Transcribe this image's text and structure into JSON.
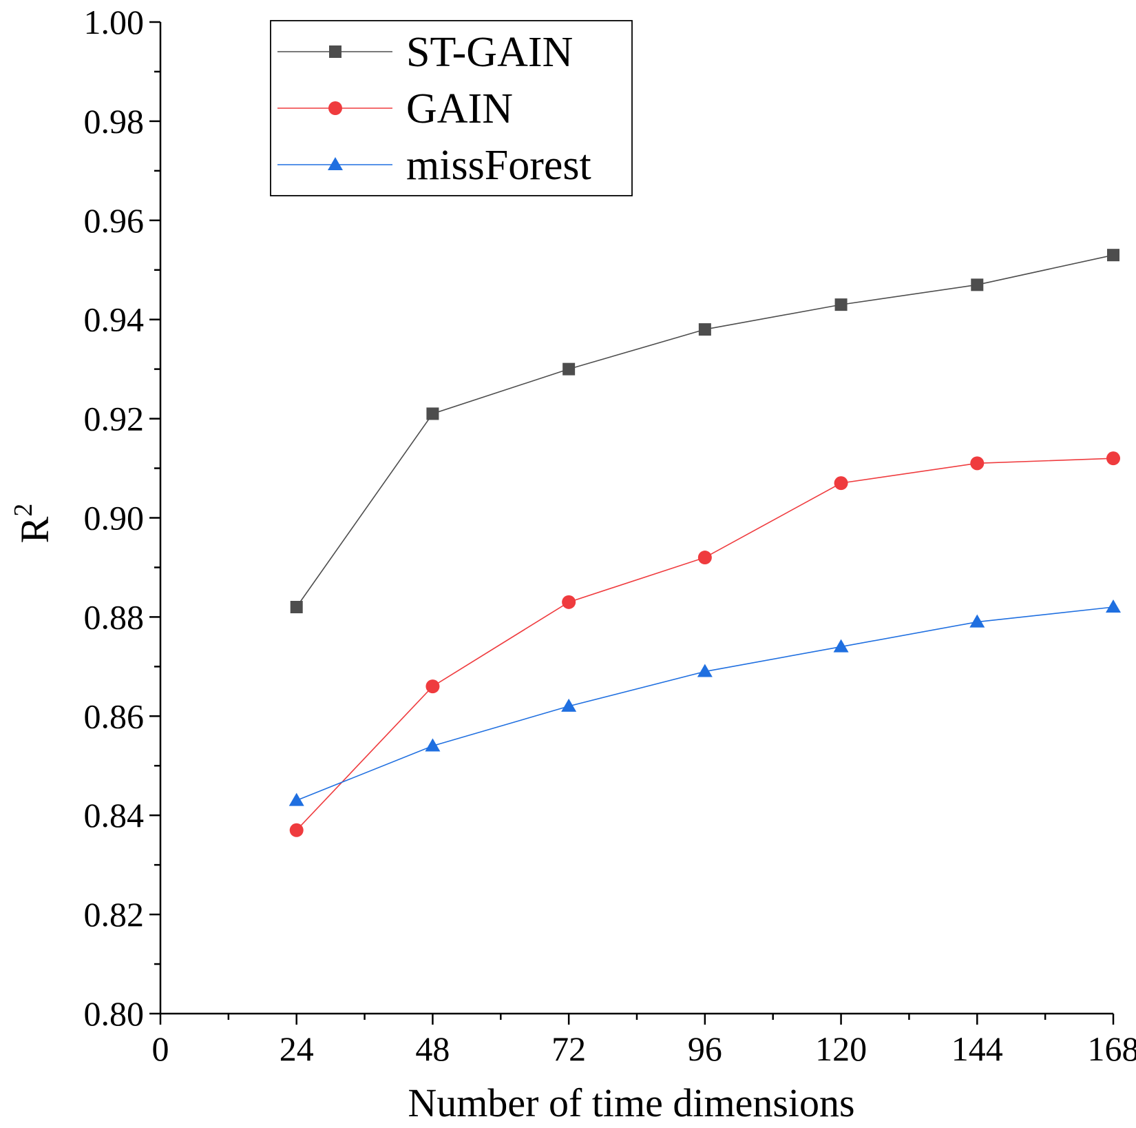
{
  "chart_data": {
    "type": "line",
    "title": "",
    "xlabel": "Number of time dimensions",
    "ylabel_base": "R",
    "ylabel_sup": "2",
    "xlim": [
      0,
      168
    ],
    "ylim": [
      0.8,
      1.0
    ],
    "x_ticks": [
      0,
      24,
      48,
      72,
      96,
      120,
      144,
      168
    ],
    "x_tick_labels": [
      "0",
      "24",
      "48",
      "72",
      "96",
      "120",
      "144",
      "168"
    ],
    "y_ticks": [
      0.8,
      0.82,
      0.84,
      0.86,
      0.88,
      0.9,
      0.92,
      0.94,
      0.96,
      0.98,
      1.0
    ],
    "y_tick_labels": [
      "0.80",
      "0.82",
      "0.84",
      "0.86",
      "0.88",
      "0.90",
      "0.92",
      "0.94",
      "0.96",
      "0.98",
      "1.00"
    ],
    "grid": false,
    "legend_position": "top-left",
    "x": [
      24,
      48,
      72,
      96,
      120,
      144,
      168
    ],
    "series": [
      {
        "name": "ST-GAIN",
        "color": "#4d4d4d",
        "marker": "square",
        "values": [
          0.882,
          0.921,
          0.93,
          0.938,
          0.943,
          0.947,
          0.953
        ]
      },
      {
        "name": "GAIN",
        "color": "#ef3b3e",
        "marker": "circle",
        "values": [
          0.837,
          0.866,
          0.883,
          0.892,
          0.907,
          0.911,
          0.912
        ]
      },
      {
        "name": "missForest",
        "color": "#1f6fe0",
        "marker": "triangle",
        "values": [
          0.843,
          0.854,
          0.862,
          0.869,
          0.874,
          0.879,
          0.882
        ]
      }
    ]
  }
}
